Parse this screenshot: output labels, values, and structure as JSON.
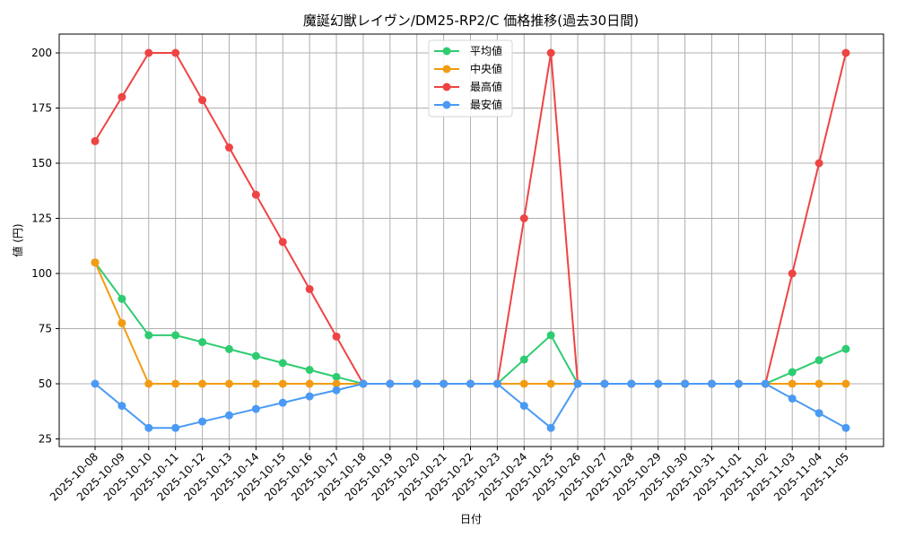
{
  "chart_data": {
    "type": "line",
    "title": "魔誕幻獣レイヴン/DM25-RP2/C 価格推移(過去30日間)",
    "xlabel": "日付",
    "ylabel": "値 (円)",
    "ylim": [
      22,
      208
    ],
    "yticks": [
      25,
      50,
      75,
      100,
      125,
      150,
      175,
      200
    ],
    "grid": true,
    "legend_position": "upper center",
    "categories": [
      "2025-10-08",
      "2025-10-09",
      "2025-10-10",
      "2025-10-11",
      "2025-10-12",
      "2025-10-13",
      "2025-10-14",
      "2025-10-15",
      "2025-10-16",
      "2025-10-17",
      "2025-10-18",
      "2025-10-19",
      "2025-10-20",
      "2025-10-21",
      "2025-10-22",
      "2025-10-23",
      "2025-10-24",
      "2025-10-25",
      "2025-10-26",
      "2025-10-27",
      "2025-10-28",
      "2025-10-29",
      "2025-10-30",
      "2025-10-31",
      "2025-11-01",
      "2025-11-02",
      "2025-11-03",
      "2025-11-04",
      "2025-11-05"
    ],
    "series": [
      {
        "name": "平均値",
        "color": "#2ecc71",
        "values": [
          105,
          88.5,
          72,
          72,
          68.9,
          65.7,
          62.6,
          59.4,
          56.3,
          53.1,
          50,
          50,
          50,
          50,
          50,
          50,
          61,
          72,
          50,
          50,
          50,
          50,
          50,
          50,
          50,
          50,
          55.3,
          60.7,
          65.8
        ]
      },
      {
        "name": "中央値",
        "color": "#f39c12",
        "values": [
          105,
          77.5,
          50,
          50,
          50,
          50,
          50,
          50,
          50,
          50,
          50,
          50,
          50,
          50,
          50,
          50,
          50,
          50,
          50,
          50,
          50,
          50,
          50,
          50,
          50,
          50,
          50,
          50,
          50
        ]
      },
      {
        "name": "最高値",
        "color": "#ef4444",
        "values": [
          160,
          180,
          200,
          200,
          178.6,
          157.1,
          135.7,
          114.3,
          92.9,
          71.4,
          50,
          50,
          50,
          50,
          50,
          50,
          125,
          200,
          50,
          50,
          50,
          50,
          50,
          50,
          50,
          50,
          100,
          150,
          200
        ]
      },
      {
        "name": "最安値",
        "color": "#4a9af5",
        "values": [
          50,
          40,
          30,
          30,
          32.9,
          35.7,
          38.6,
          41.4,
          44.3,
          47.1,
          50,
          50,
          50,
          50,
          50,
          50,
          40,
          30,
          50,
          50,
          50,
          50,
          50,
          50,
          50,
          50,
          43.3,
          36.7,
          30
        ]
      }
    ]
  }
}
